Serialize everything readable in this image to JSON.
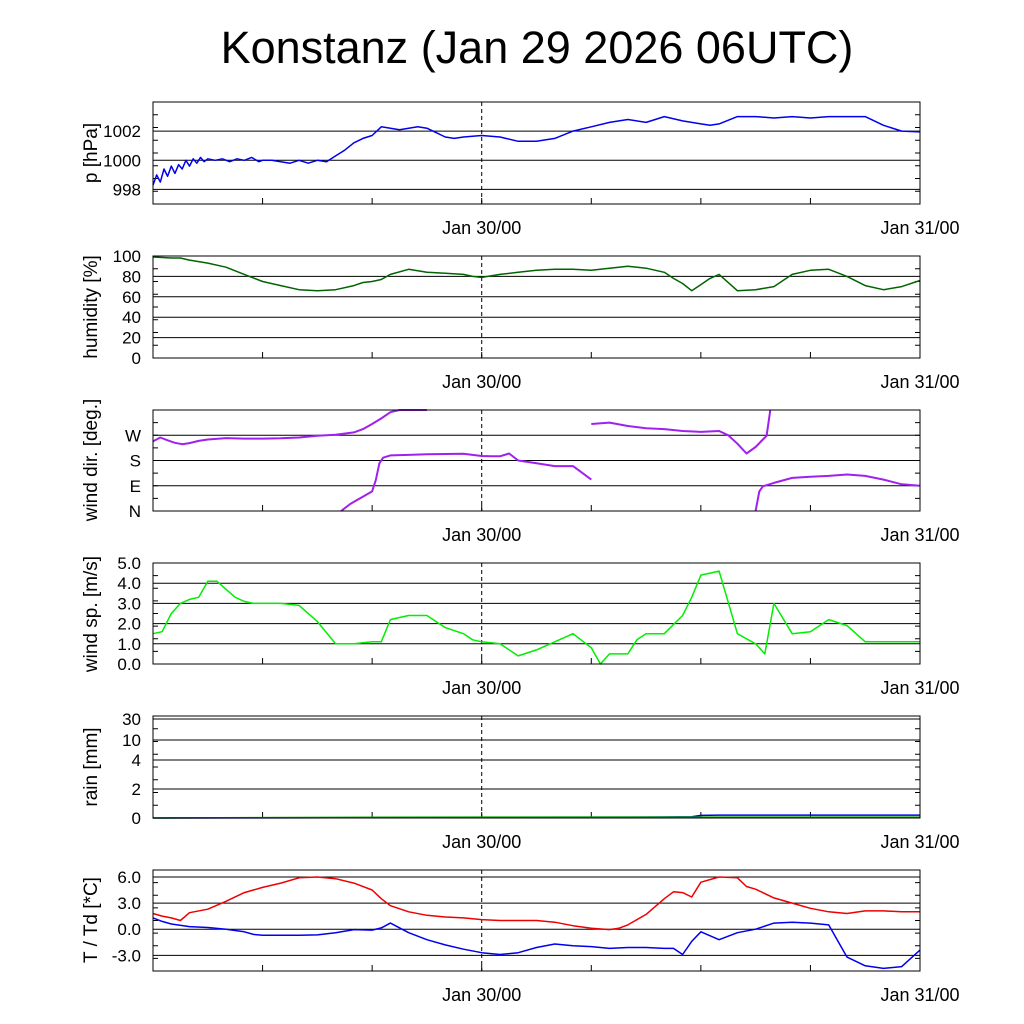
{
  "title": "Konstanz (Jan 29 2026 06UTC)",
  "x_tick_labels": [
    "Jan 30/00",
    "Jan 31/00"
  ],
  "colors": {
    "pressure": "#0000ee",
    "humidity": "#006400",
    "wind_dir": "#a020f0",
    "wind_speed": "#00ee00",
    "rain_blue": "#0000ee",
    "rain_green": "#00aa00",
    "temperature": "#ee0000",
    "dewpoint": "#0000ee"
  },
  "chart_data": [
    {
      "type": "line",
      "name": "pressure",
      "ylabel": "p [hPa]",
      "xlabel": "",
      "xlim": [
        0,
        42
      ],
      "ylim": [
        997,
        1004
      ],
      "yticks": [
        998,
        1000,
        1002
      ],
      "ytick_labels": [
        "998",
        "1000",
        "1002"
      ],
      "series": [
        {
          "name": "p",
          "color": "#0000ee",
          "x": [
            0,
            0.2,
            0.4,
            0.6,
            0.8,
            1.0,
            1.2,
            1.4,
            1.6,
            1.8,
            2.0,
            2.2,
            2.4,
            2.6,
            2.8,
            3.0,
            3.4,
            3.8,
            4.2,
            4.6,
            5.0,
            5.4,
            5.8,
            6.0,
            6.5,
            7.0,
            7.5,
            8.0,
            8.5,
            9.0,
            9.5,
            10,
            10.5,
            11,
            11.5,
            12,
            12.5,
            13,
            13.5,
            14,
            14.5,
            15,
            15.5,
            16,
            16.5,
            17,
            18,
            19,
            20,
            21,
            22,
            23,
            24,
            25,
            26,
            27,
            28,
            29,
            30,
            30.5,
            31,
            32,
            32.5,
            33,
            33.5,
            34,
            35,
            36,
            37,
            38,
            39,
            40,
            41,
            42
          ],
          "values": [
            998.3,
            999.0,
            998.5,
            999.4,
            998.9,
            999.6,
            999.1,
            999.7,
            999.4,
            1000.0,
            999.6,
            1000.1,
            999.8,
            1000.2,
            999.9,
            1000.1,
            1000.0,
            1000.1,
            999.9,
            1000.1,
            1000.0,
            1000.2,
            999.9,
            1000.0,
            1000.0,
            999.9,
            999.8,
            1000.0,
            999.8,
            1000.0,
            999.9,
            1000.3,
            1000.7,
            1001.2,
            1001.5,
            1001.7,
            1002.3,
            1002.2,
            1002.1,
            1002.2,
            1002.3,
            1002.2,
            1001.9,
            1001.6,
            1001.5,
            1001.6,
            1001.7,
            1001.6,
            1001.3,
            1001.3,
            1001.5,
            1002.0,
            1002.3,
            1002.6,
            1002.8,
            1002.6,
            1003.0,
            1002.7,
            1002.5,
            1002.4,
            1002.5,
            1003.0,
            1003.0,
            1003.0,
            1002.95,
            1002.9,
            1003.0,
            1002.9,
            1003.0,
            1003.0,
            1003.0,
            1002.4,
            1002.0,
            1001.95
          ]
        }
      ]
    },
    {
      "type": "line",
      "name": "humidity",
      "ylabel": "humidity [%]",
      "xlabel": "",
      "xlim": [
        0,
        42
      ],
      "ylim": [
        0,
        100
      ],
      "yticks": [
        0,
        20,
        40,
        60,
        80,
        100
      ],
      "ytick_labels": [
        "0",
        "20",
        "40",
        "60",
        "80",
        "100"
      ],
      "series": [
        {
          "name": "rh",
          "color": "#006400",
          "x": [
            0,
            1,
            1.5,
            2,
            3,
            4,
            5,
            6,
            7,
            8,
            9,
            10,
            11,
            11.5,
            12,
            12.5,
            13,
            14,
            15,
            16,
            17,
            17.5,
            18,
            19,
            20,
            21,
            22,
            23,
            24,
            25,
            26,
            27,
            28,
            28.5,
            29,
            29.5,
            30,
            30.5,
            31,
            32,
            33,
            34,
            35,
            36,
            37,
            38,
            39,
            40,
            41,
            42
          ],
          "values": [
            99,
            98,
            98,
            96,
            93,
            89,
            82,
            75,
            71,
            67,
            66,
            67,
            71,
            74,
            75,
            77,
            82,
            87,
            84,
            83,
            82,
            80,
            79,
            82,
            84,
            86,
            87,
            87,
            86,
            88,
            90,
            88,
            84,
            78,
            73,
            66,
            72,
            78,
            82,
            66,
            67,
            70,
            82,
            86,
            87,
            80,
            71,
            67,
            70,
            76
          ]
        }
      ]
    },
    {
      "type": "scatter",
      "name": "wind_direction",
      "ylabel": "wind dir. [deg.]",
      "xlabel": "",
      "xlim": [
        0,
        42
      ],
      "ylim": [
        0,
        360
      ],
      "yticks": [
        0,
        90,
        180,
        270
      ],
      "ytick_labels": [
        "N",
        "E",
        "S",
        "W"
      ],
      "series": [
        {
          "name": "dir_a",
          "color": "#a020f0",
          "x": [
            0,
            0.4,
            0.8,
            1.2,
            1.6,
            2.0,
            2.5,
            3.0,
            4.0,
            5.0,
            6.0,
            7.0,
            8.0,
            9.0,
            10.0,
            11.0,
            11.5,
            12.0,
            12.5,
            13.0,
            13.5,
            14.0,
            14.5,
            15.0
          ],
          "values": [
            248,
            262,
            252,
            243,
            238,
            242,
            250,
            255,
            260,
            258,
            258,
            259,
            262,
            268,
            272,
            280,
            292,
            310,
            330,
            352,
            360,
            360,
            360,
            360
          ]
        },
        {
          "name": "dir_b",
          "color": "#a020f0",
          "x": [
            10.3,
            10.8,
            11.2,
            11.6,
            12.0,
            12.2,
            12.4,
            12.6,
            13.0,
            14.0,
            15.0,
            16.0,
            17.0,
            17.5,
            18.0,
            18.5,
            19.0,
            19.5,
            20.0,
            21.0,
            22.0,
            23.0,
            24.0
          ],
          "values": [
            0,
            25,
            40,
            55,
            70,
            110,
            170,
            190,
            198,
            200,
            202,
            203,
            204,
            200,
            196,
            195,
            195,
            205,
            180,
            170,
            160,
            160,
            112
          ]
        },
        {
          "name": "dir_c",
          "color": "#a020f0",
          "x": [
            24.0,
            25.0,
            26.0,
            27.0,
            28.0,
            29.0,
            30.0,
            31.0,
            31.5,
            32.0,
            32.5,
            33.0,
            33.4,
            33.6,
            33.8
          ],
          "values": [
            310,
            315,
            303,
            295,
            292,
            285,
            282,
            285,
            270,
            240,
            205,
            228,
            255,
            268,
            360
          ]
        },
        {
          "name": "dir_d",
          "color": "#a020f0",
          "x": [
            33.0,
            33.2,
            33.4,
            34.0,
            35.0,
            36.0,
            37.0,
            38.0,
            39.0,
            40.0,
            41.0,
            42.0
          ],
          "values": [
            0,
            70,
            88,
            100,
            118,
            122,
            125,
            130,
            125,
            112,
            95,
            90
          ]
        }
      ]
    },
    {
      "type": "line",
      "name": "wind_speed",
      "ylabel": "wind sp. [m/s]",
      "xlabel": "",
      "xlim": [
        0,
        42
      ],
      "ylim": [
        0,
        5
      ],
      "yticks": [
        0,
        1,
        2,
        3,
        4,
        5
      ],
      "ytick_labels": [
        "0.0",
        "1.0",
        "2.0",
        "3.0",
        "4.0",
        "5.0"
      ],
      "series": [
        {
          "name": "ff",
          "color": "#00ee00",
          "x": [
            0,
            0.5,
            1,
            1.5,
            2,
            2.5,
            3,
            3.5,
            4,
            4.5,
            5,
            5.5,
            6,
            7,
            8,
            9,
            10,
            11,
            12,
            12.5,
            13,
            13.5,
            14,
            15,
            16,
            17,
            17.5,
            18,
            19,
            20,
            21,
            22,
            23,
            24,
            24.5,
            25,
            26,
            26.5,
            27,
            28,
            29,
            29.5,
            30,
            31,
            32,
            33,
            33.5,
            34,
            35,
            36,
            37,
            38,
            39,
            40,
            41,
            42
          ],
          "values": [
            1.5,
            1.6,
            2.5,
            3.0,
            3.2,
            3.3,
            4.1,
            4.1,
            3.7,
            3.3,
            3.1,
            3.0,
            3.0,
            3.0,
            2.9,
            2.1,
            1.0,
            1.0,
            1.1,
            1.1,
            2.2,
            2.3,
            2.4,
            2.4,
            1.8,
            1.5,
            1.2,
            1.1,
            1.0,
            0.4,
            0.7,
            1.1,
            1.5,
            0.8,
            0.0,
            0.5,
            0.5,
            1.2,
            1.5,
            1.5,
            2.4,
            3.3,
            4.4,
            4.6,
            1.5,
            1.0,
            0.5,
            3.0,
            1.5,
            1.6,
            2.2,
            1.9,
            1.1,
            1.1,
            1.1,
            1.1
          ]
        }
      ]
    },
    {
      "type": "line",
      "name": "rain",
      "ylabel": "rain [mm]",
      "xlabel": "",
      "xlim": [
        0,
        42
      ],
      "ylim": [
        0,
        30
      ],
      "yscale": "nonlinear",
      "yticks": [
        0,
        2,
        4,
        10,
        30
      ],
      "ytick_labels": [
        "0",
        "2",
        "4",
        "10",
        "30"
      ],
      "series": [
        {
          "name": "rain_sum",
          "color": "#0000ee",
          "x": [
            0,
            10,
            18,
            26,
            28,
            29.5,
            30,
            31,
            32,
            33,
            34,
            35,
            36,
            42
          ],
          "values": [
            0,
            0.02,
            0.05,
            0.06,
            0.07,
            0.09,
            0.18,
            0.2,
            0.2,
            0.2,
            0.2,
            0.2,
            0.2,
            0.2
          ]
        },
        {
          "name": "rain_green",
          "color": "#00aa00",
          "x": [
            0,
            10,
            18,
            26,
            30,
            36,
            42
          ],
          "values": [
            0,
            0.04,
            0.06,
            0.06,
            0.06,
            0.06,
            0.06
          ]
        }
      ]
    },
    {
      "type": "line",
      "name": "temperature",
      "ylabel": "T / Td [*C]",
      "xlabel": "",
      "xlim": [
        0,
        42
      ],
      "ylim": [
        -4.8,
        6.8
      ],
      "yticks": [
        -3,
        0,
        3,
        6
      ],
      "ytick_labels": [
        "-3.0",
        "0.0",
        "3.0",
        "6.0"
      ],
      "series": [
        {
          "name": "T",
          "color": "#ee0000",
          "x": [
            0,
            0.5,
            1,
            1.5,
            2,
            3,
            4,
            5,
            6,
            7,
            8,
            9,
            10,
            11,
            12,
            12.5,
            13,
            14,
            15,
            16,
            17,
            18,
            19,
            20,
            21,
            22,
            23,
            24,
            25,
            25.5,
            26,
            27,
            28,
            28.5,
            29,
            29.5,
            30,
            31,
            32,
            32.5,
            33,
            34,
            35,
            36,
            37,
            38,
            39,
            40,
            41,
            42
          ],
          "values": [
            1.8,
            1.5,
            1.3,
            1.0,
            1.9,
            2.3,
            3.2,
            4.2,
            4.8,
            5.3,
            5.9,
            6.0,
            5.8,
            5.3,
            4.5,
            3.5,
            2.7,
            2.0,
            1.6,
            1.4,
            1.3,
            1.1,
            1.0,
            1.0,
            1.0,
            0.8,
            0.4,
            0.1,
            -0.05,
            0.1,
            0.5,
            1.7,
            3.5,
            4.3,
            4.2,
            3.7,
            5.4,
            6.0,
            5.9,
            4.9,
            4.6,
            3.6,
            3.0,
            2.4,
            2.0,
            1.8,
            2.1,
            2.1,
            2.0,
            2.0
          ]
        },
        {
          "name": "Td",
          "color": "#0000ee",
          "x": [
            0,
            0.5,
            1,
            2,
            3,
            4,
            5,
            5.5,
            6,
            7,
            8,
            9,
            10,
            11,
            12,
            12.5,
            13,
            14,
            15,
            16,
            17,
            18,
            19,
            20,
            21,
            22,
            23,
            24,
            25,
            26,
            27,
            28,
            28.5,
            29,
            29.5,
            30,
            31,
            32,
            33,
            34,
            35,
            36,
            37,
            38,
            39,
            40,
            41,
            42
          ],
          "values": [
            1.3,
            0.9,
            0.6,
            0.3,
            0.2,
            0.0,
            -0.3,
            -0.6,
            -0.7,
            -0.7,
            -0.7,
            -0.65,
            -0.4,
            -0.05,
            -0.1,
            0.15,
            0.7,
            -0.4,
            -1.2,
            -1.8,
            -2.3,
            -2.7,
            -2.9,
            -2.7,
            -2.1,
            -1.7,
            -1.9,
            -2.0,
            -2.2,
            -2.1,
            -2.1,
            -2.2,
            -2.2,
            -2.9,
            -1.4,
            -0.3,
            -1.2,
            -0.4,
            0.0,
            0.7,
            0.8,
            0.7,
            0.5,
            -3.2,
            -4.2,
            -4.5,
            -4.3,
            -2.4
          ]
        }
      ]
    }
  ]
}
